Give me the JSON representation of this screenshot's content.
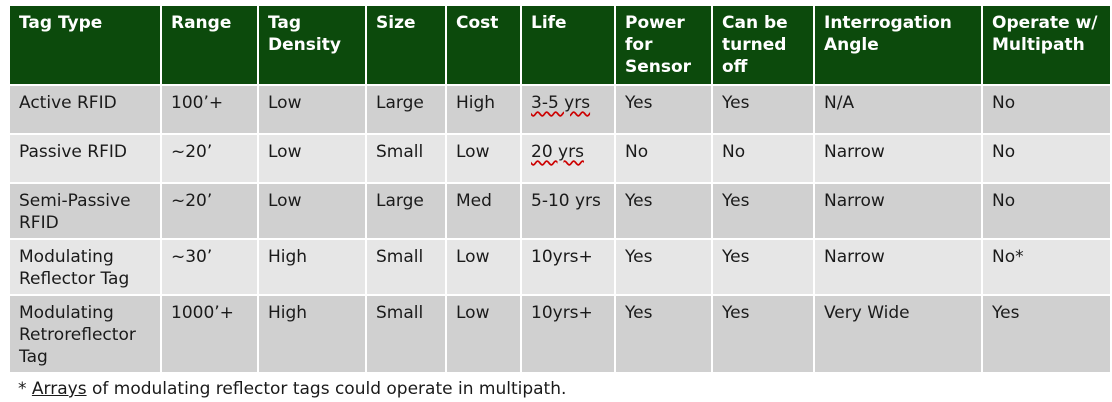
{
  "headers": [
    "Tag Type",
    "Range",
    "Tag Density",
    "Size",
    "Cost",
    "Life",
    "Power for Sensor",
    "Can be turned off",
    "Interrogation Angle",
    "Operate w/ Multipath"
  ],
  "rows": [
    [
      "Active RFID",
      "100’+",
      "Low",
      "Large",
      "High",
      "3-5 yrs",
      "Yes",
      "Yes",
      "N/A",
      "No"
    ],
    [
      "Passive RFID",
      "~20’",
      "Low",
      "Small",
      "Low",
      "20 yrs",
      "No",
      "No",
      "Narrow",
      "No"
    ],
    [
      "Semi-Passive RFID",
      "~20’",
      "Low",
      "Large",
      "Med",
      "5-10 yrs",
      "Yes",
      "Yes",
      "Narrow",
      "No"
    ],
    [
      "Modulating Reflector Tag",
      "~30’",
      "High",
      "Small",
      "Low",
      "10yrs+",
      "Yes",
      "Yes",
      "Narrow",
      "No*"
    ],
    [
      "Modulating Retroreflector Tag",
      "1000’+",
      "High",
      "Small",
      "Low",
      "10yrs+",
      "Yes",
      "Yes",
      "Very Wide",
      "Yes"
    ]
  ],
  "footnote": {
    "prefix": "* ",
    "underlined": "Arrays",
    "rest": " of modulating reflector tags could operate in multipath."
  },
  "colors": {
    "header_bg": "#0c4a0c",
    "header_text": "#ffffff",
    "row_odd_bg": "#d0d0d0",
    "row_even_bg": "#e6e6e6"
  }
}
